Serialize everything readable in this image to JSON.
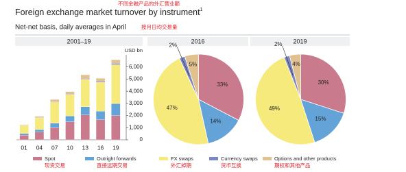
{
  "header": {
    "title": "Foreign exchange market turnover by instrument",
    "title_footnote_mark": "1",
    "title_note": "不同金融产品的外汇营业额",
    "subtitle": "Net-net basis, daily averages in April",
    "subtitle_note": "按月日均交易量"
  },
  "chart_data": [
    {
      "type": "bar",
      "stacked": true,
      "title": "2001–19",
      "y_unit": "USD bn",
      "categories": [
        "01",
        "04",
        "07",
        "10",
        "13",
        "16",
        "19"
      ],
      "series": [
        {
          "name": "Spot",
          "note": "现货交易",
          "color": "#c97b8d",
          "values": [
            386,
            631,
            1005,
            1489,
            2047,
            1652,
            1987
          ]
        },
        {
          "name": "Outright forwards",
          "note": "直接远期交易",
          "color": "#63a3d8",
          "values": [
            130,
            209,
            362,
            475,
            679,
            700,
            999
          ]
        },
        {
          "name": "FX swaps",
          "note": "外汇掉期",
          "color": "#f7ea7c",
          "values": [
            656,
            954,
            1714,
            1759,
            2240,
            2378,
            3202
          ]
        },
        {
          "name": "Currency swaps",
          "note": "货币互换",
          "color": "#7c86c2",
          "values": [
            7,
            21,
            31,
            43,
            54,
            82,
            108
          ]
        },
        {
          "name": "Options and other products",
          "note": "期权和其他产品",
          "color": "#e2c190",
          "values": [
            60,
            119,
            212,
            207,
            337,
            254,
            294
          ]
        }
      ],
      "ylim": [
        0,
        7000
      ],
      "yticks": [
        0,
        {
          "value": 1000,
          "label": "1,000"
        },
        {
          "value": 2000,
          "label": "2,000"
        },
        {
          "value": 3000,
          "label": "3,000"
        },
        {
          "value": 4000,
          "label": "4,000"
        },
        {
          "value": 5000,
          "label": "5,000"
        },
        {
          "value": 6000,
          "label": "6,000"
        }
      ],
      "grid": false
    },
    {
      "type": "pie",
      "title": "2016",
      "values": [
        33,
        14,
        47,
        2,
        5
      ],
      "value_labels": [
        "33%",
        "14%",
        "47%",
        "2%",
        "5%"
      ],
      "colors": [
        "#c97b8d",
        "#63a3d8",
        "#f7ea7c",
        "#7c86c2",
        "#e2c190"
      ]
    },
    {
      "type": "pie",
      "title": "2019",
      "values": [
        30,
        15,
        49,
        2,
        4
      ],
      "value_labels": [
        "30%",
        "15%",
        "49%",
        "2%",
        "4%"
      ],
      "colors": [
        "#c97b8d",
        "#63a3d8",
        "#f7ea7c",
        "#7c86c2",
        "#e2c190"
      ]
    }
  ]
}
